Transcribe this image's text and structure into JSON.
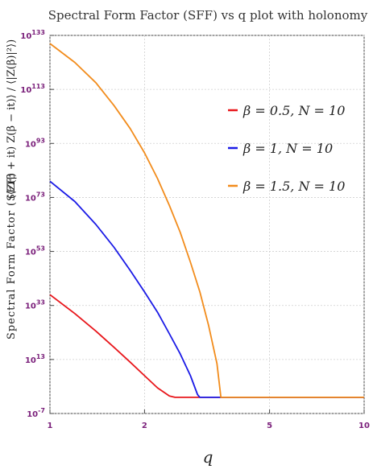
{
  "chart_data": {
    "type": "line",
    "title": "Spectral Form Factor (SFF) vs q plot with holonomy",
    "xlabel": "q",
    "ylabel": "Spectral Form Factor (SFF)",
    "ylabel_formula": "(⟨Z(β + it) Z(β − it)⟩ / ⟨|Z(β)|²⟩)",
    "x_scale": "log",
    "y_scale": "log",
    "xlim": [
      1,
      10
    ],
    "ylim_exponent": [
      -7,
      133
    ],
    "x_ticks": [
      {
        "value": 1,
        "label": "1"
      },
      {
        "value": 2,
        "label": "2"
      },
      {
        "value": 5,
        "label": "5"
      },
      {
        "value": 10,
        "label": "10"
      }
    ],
    "y_ticks": [
      {
        "exp": -7,
        "base": "10",
        "sup": "-7"
      },
      {
        "exp": 13,
        "base": "10",
        "sup": "13"
      },
      {
        "exp": 33,
        "base": "10",
        "sup": "33"
      },
      {
        "exp": 53,
        "base": "10",
        "sup": "53"
      },
      {
        "exp": 73,
        "base": "10",
        "sup": "73"
      },
      {
        "exp": 93,
        "base": "10",
        "sup": "93"
      },
      {
        "exp": 113,
        "base": "10",
        "sup": "113"
      },
      {
        "exp": 133,
        "base": "10",
        "sup": "133"
      }
    ],
    "grid": true,
    "legend_position": "right",
    "series": [
      {
        "name": "β = 0.5, N = 10",
        "color": "#e8161b",
        "x": [
          1.0,
          1.2,
          1.4,
          1.6,
          1.8,
          2.0,
          2.2,
          2.4,
          2.5,
          3.0,
          5.0,
          10.0
        ],
        "log10_y": [
          37,
          30,
          23.5,
          17.5,
          12,
          7,
          2.5,
          -0.5,
          -1,
          -1,
          -1,
          -1
        ]
      },
      {
        "name": "β = 1, N = 10",
        "color": "#1a1ae6",
        "x": [
          1.0,
          1.2,
          1.4,
          1.6,
          1.8,
          2.0,
          2.2,
          2.4,
          2.6,
          2.8,
          2.95,
          3.0,
          5.0,
          10.0
        ],
        "log10_y": [
          79,
          71.5,
          63,
          54.5,
          46,
          38,
          30.5,
          22.5,
          15,
          7,
          0,
          -1,
          -1,
          -1
        ]
      },
      {
        "name": "β = 1.5, N = 10",
        "color": "#f28c1c",
        "x": [
          1.0,
          1.2,
          1.4,
          1.6,
          1.8,
          2.0,
          2.2,
          2.4,
          2.6,
          2.8,
          3.0,
          3.2,
          3.4,
          3.5,
          5.0,
          10.0
        ],
        "log10_y": [
          130,
          123,
          115.5,
          107,
          98.5,
          89.5,
          80,
          70,
          60,
          49,
          38,
          25.5,
          11.5,
          -1,
          -1,
          -1
        ]
      }
    ]
  }
}
